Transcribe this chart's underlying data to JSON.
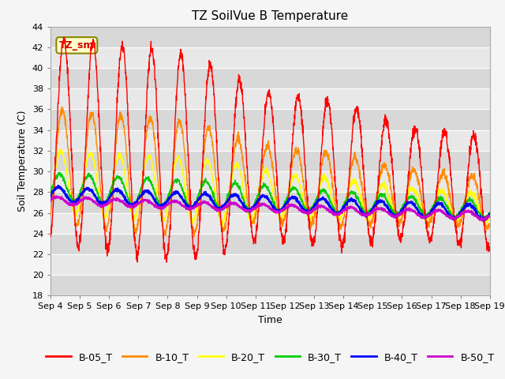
{
  "title": "TZ SoilVue B Temperature",
  "xlabel": "Time",
  "ylabel": "Soil Temperature (C)",
  "ylim": [
    18,
    44
  ],
  "yticks": [
    18,
    20,
    22,
    24,
    26,
    28,
    30,
    32,
    34,
    36,
    38,
    40,
    42,
    44
  ],
  "x_labels": [
    "Sep 4",
    "Sep 5",
    "Sep 6",
    "Sep 7",
    "Sep 8",
    "Sep 9",
    "Sep 10",
    "Sep 11",
    "Sep 12",
    "Sep 13",
    "Sep 14",
    "Sep 15",
    "Sep 16",
    "Sep 17",
    "Sep 18",
    "Sep 19"
  ],
  "annotation_label": "TZ_sm",
  "series_colors": {
    "B-05_T": "#ff0000",
    "B-10_T": "#ff8c00",
    "B-20_T": "#ffff00",
    "B-30_T": "#00cc00",
    "B-40_T": "#0000ff",
    "B-50_T": "#cc00cc"
  },
  "bg_color": "#f5f5f5",
  "plot_bg": "#e8e8e8",
  "grid_color": "#ffffff",
  "title_fontsize": 11,
  "axis_fontsize": 8,
  "legend_fontsize": 9
}
